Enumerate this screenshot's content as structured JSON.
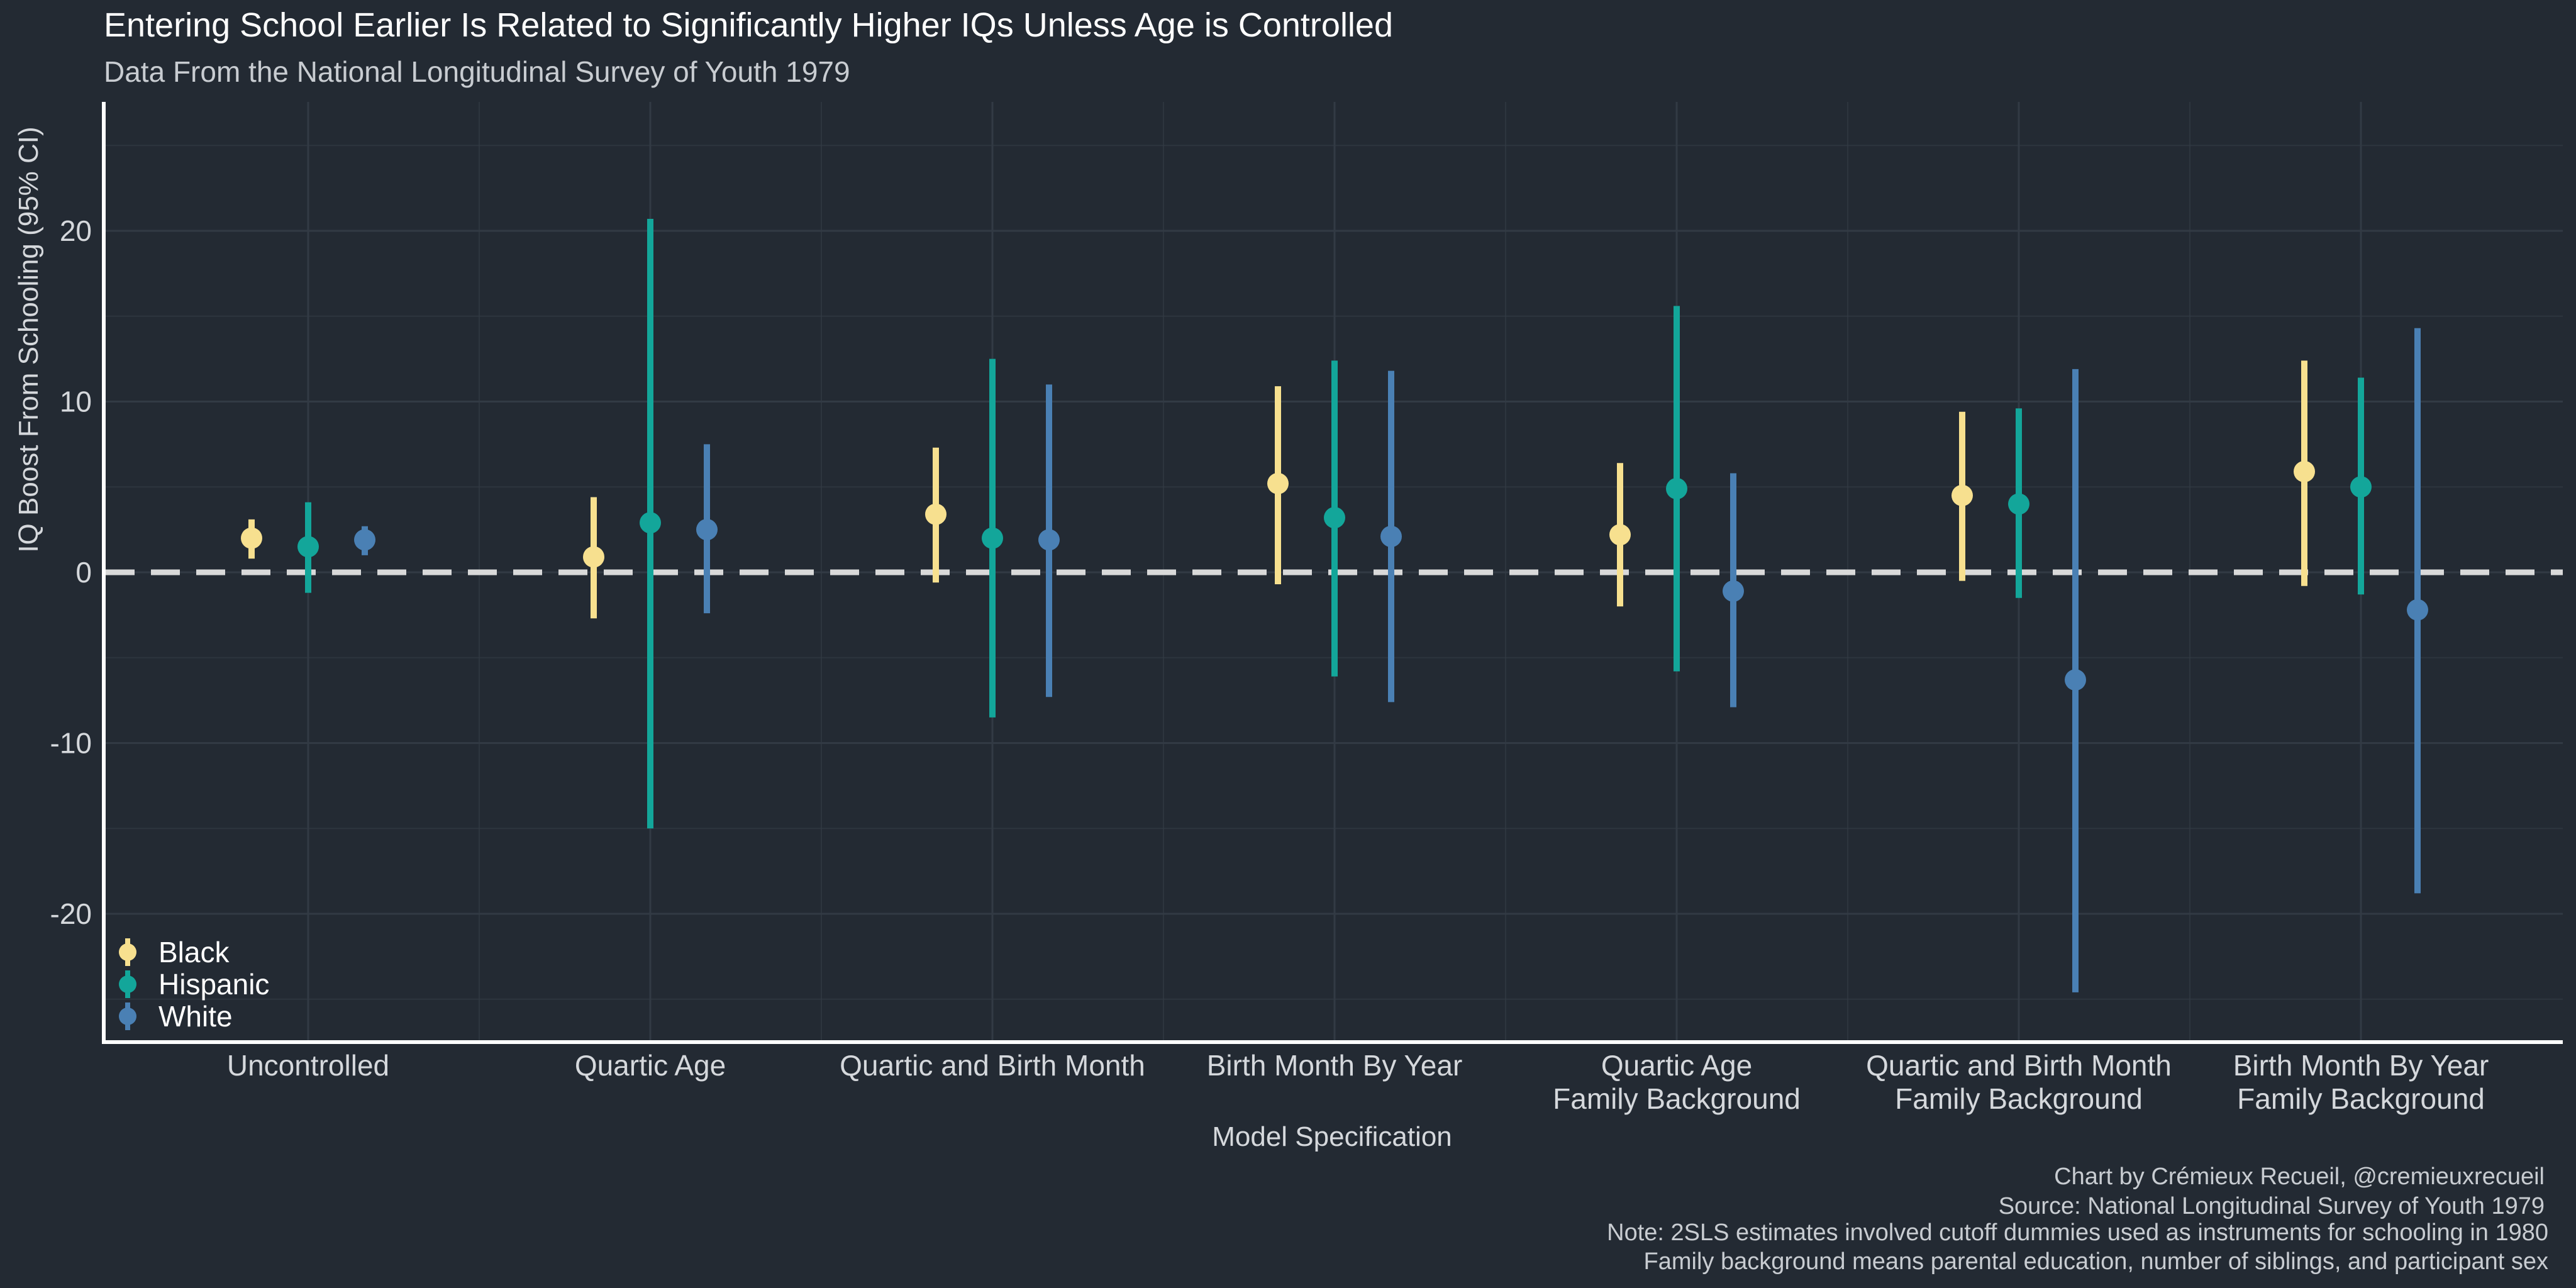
{
  "colors": {
    "background": "#232a33",
    "grid": "#323a44",
    "axis": "#ffffff",
    "text": "#d5d8dc",
    "title": "#ffffff",
    "zero_line": "#d9d9d9",
    "Black": "#f7e08f",
    "Hispanic": "#13a69a",
    "White": "#4a80b4"
  },
  "chart_data": {
    "type": "pointrange",
    "title": "Entering School Earlier Is Related to Significantly Higher IQs Unless Age is Controlled",
    "subtitle": "Data From the National Longitudinal Survey of Youth 1979",
    "xlabel": "Model Specification",
    "ylabel": "IQ Boost From Schooling (95% CI)",
    "ylim": [
      -27,
      27
    ],
    "yticks": [
      20,
      10,
      0,
      -10,
      -20
    ],
    "ytick_labels": [
      "20",
      "10",
      "0",
      "-10",
      "-20"
    ],
    "zero_line": true,
    "grid": true,
    "legend_position": "bottom-left",
    "categories": [
      [
        "Uncontrolled"
      ],
      [
        "Quartic Age"
      ],
      [
        "Quartic and Birth Month"
      ],
      [
        "Birth Month By Year"
      ],
      [
        "Quartic Age",
        "Family Background"
      ],
      [
        "Quartic and Birth Month",
        "Family Background"
      ],
      [
        "Birth Month By Year",
        "Family Background"
      ]
    ],
    "series": [
      {
        "name": "Black",
        "estimate": [
          2.0,
          0.9,
          3.4,
          5.2,
          2.2,
          4.5,
          5.9
        ],
        "lower": [
          0.8,
          -2.7,
          -0.6,
          -0.7,
          -2.0,
          -0.5,
          -0.8
        ],
        "upper": [
          3.1,
          4.4,
          7.3,
          10.9,
          6.4,
          9.4,
          12.4
        ]
      },
      {
        "name": "Hispanic",
        "estimate": [
          1.5,
          2.9,
          2.0,
          3.2,
          4.9,
          4.0,
          5.0
        ],
        "lower": [
          -1.2,
          -15.0,
          -8.5,
          -6.1,
          -5.8,
          -1.5,
          -1.3
        ],
        "upper": [
          4.1,
          20.7,
          12.5,
          12.4,
          15.6,
          9.6,
          11.4
        ]
      },
      {
        "name": "White",
        "estimate": [
          1.9,
          2.5,
          1.9,
          2.1,
          -1.1,
          -6.3,
          -2.2
        ],
        "lower": [
          1.0,
          -2.4,
          -7.3,
          -7.6,
          -7.9,
          -24.6,
          -18.8
        ],
        "upper": [
          2.7,
          7.5,
          11.0,
          11.8,
          5.8,
          11.9,
          14.3
        ]
      }
    ],
    "notes": [
      "Chart by Crémieux Recueil, @cremieuxrecueil",
      "Source: National Longitudinal Survey of Youth 1979",
      "Note: 2SLS estimates involved cutoff dummies used as instruments for schooling in 1980",
      "Family background means parental education, number of siblings, and participant sex"
    ]
  }
}
